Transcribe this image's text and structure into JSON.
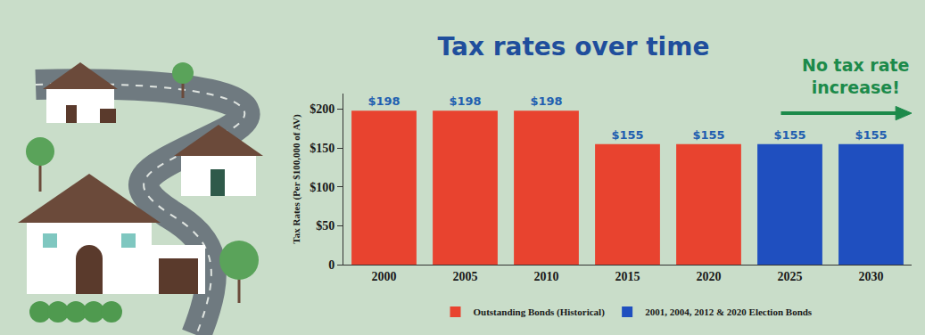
{
  "chart_data": {
    "type": "bar",
    "title": "Tax rates over time",
    "ylabel": "Tax Rates (Per $100,000 of AV)",
    "categories": [
      "2000",
      "2005",
      "2010",
      "2015",
      "2020",
      "2025",
      "2030"
    ],
    "series": [
      {
        "name": "Outstanding Bonds (Historical)",
        "color": "#e8432f",
        "values": [
          198,
          198,
          198,
          155,
          155,
          null,
          null
        ],
        "value_labels": [
          "$198",
          "$198",
          "$198",
          "$155",
          "$155",
          null,
          null
        ]
      },
      {
        "name": "2001, 2004, 2012 & 2020 Election Bonds",
        "color": "#1f4fbf",
        "values": [
          null,
          null,
          null,
          null,
          null,
          155,
          155
        ],
        "value_labels": [
          null,
          null,
          null,
          null,
          null,
          "$155",
          "$155"
        ]
      }
    ],
    "ylim": [
      0,
      220
    ],
    "yticks": [
      0,
      {
        "value": 50,
        "label": "$50"
      },
      {
        "value": 100,
        "label": "$100"
      },
      {
        "value": 150,
        "label": "$150"
      },
      {
        "value": 200,
        "label": "$200"
      }
    ],
    "grid": false,
    "legend": "bottom",
    "data_labels": true,
    "annotations": [
      {
        "text": "No tax rate increase!",
        "color": "#1c8a4a"
      }
    ]
  }
}
